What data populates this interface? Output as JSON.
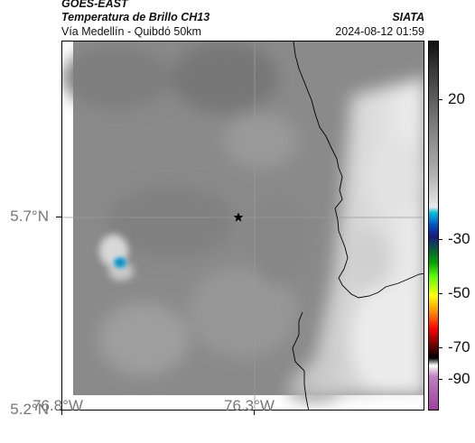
{
  "header": {
    "satellite": "GOES-EAST",
    "product": "Temperatura de Brillo CH13",
    "organization": "SIATA",
    "area": "Vía Medellín - Quibdó 50km",
    "timestamp": "2024-08-12 01:59"
  },
  "map": {
    "lat_labels": [
      "5.7°N",
      "5.2°N"
    ],
    "lon_labels": [
      "76.8°W",
      "76.3°W"
    ],
    "marker": "star-icon",
    "colors": {
      "cloud_bright": "#e6e6e6",
      "background_gray": "#8c8c8c",
      "cold_core": "#1fa3d6"
    }
  },
  "colorbar": {
    "tick_labels": [
      "20",
      "-30",
      "-50",
      "-70",
      "-90"
    ],
    "stops": [
      "#101010",
      "#3a3a3a",
      "#7a7a7a",
      "#b0b0b0",
      "#e8e8e8",
      "#00c0e0",
      "#0050c0",
      "#1a1a80",
      "#00a000",
      "#60ff00",
      "#ffff00",
      "#ff8000",
      "#ff0000",
      "#800000",
      "#000000",
      "#ffffff",
      "#c080c0",
      "#a040a0"
    ]
  }
}
